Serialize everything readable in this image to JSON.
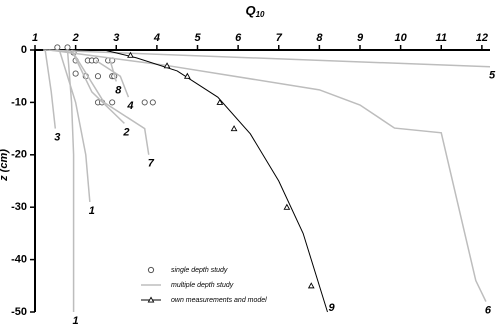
{
  "chart_data": {
    "type": "depth-profile",
    "x_label": "Q",
    "x_label_sub": "10",
    "y_label": "z (cm)",
    "xlim": [
      1,
      12.2
    ],
    "xticks": [
      1,
      2,
      3,
      4,
      5,
      6,
      7,
      8,
      9,
      10,
      11,
      12
    ],
    "ylim": [
      -50,
      0
    ],
    "yticks": [
      0,
      -10,
      -20,
      -30,
      -40,
      -50
    ],
    "series": [
      {
        "name": "single depth study",
        "marker": "circle",
        "color": "#555555",
        "x": [
          1.55,
          1.8,
          1.95,
          2.0,
          2.0,
          2.3,
          2.4,
          2.5,
          2.25,
          2.55,
          2.8,
          2.9,
          2.9,
          2.95,
          2.55,
          2.65,
          2.9,
          3.7,
          3.9
        ],
        "y": [
          0.5,
          0.5,
          -0.5,
          -2,
          -4.5,
          -2,
          -2,
          -2,
          -5,
          -5,
          -2,
          -2,
          -5,
          -5,
          -10,
          -10,
          -10,
          -10,
          -10
        ]
      },
      {
        "name": "multiple depth study",
        "marker": "none",
        "color": "#bdbdbd",
        "lines": [
          {
            "label": "1",
            "x": [
              1.8,
              1.9,
              1.95,
              1.95
            ],
            "y": [
              0,
              -10,
              -20,
              -50
            ]
          },
          {
            "label": "1",
            "x": [
              1.6,
              2.0,
              2.25,
              2.35
            ],
            "y": [
              0,
              -10,
              -20,
              -29
            ]
          },
          {
            "label": "3",
            "x": [
              1.25,
              1.4,
              1.5
            ],
            "y": [
              0,
              -8,
              -15
            ]
          },
          {
            "label": "2",
            "x": [
              1.9,
              2.4,
              3.2
            ],
            "y": [
              0,
              -8,
              -14
            ]
          },
          {
            "label": "4",
            "x": [
              2.5,
              3.1,
              3.3
            ],
            "y": [
              -2,
              -5,
              -9
            ]
          },
          {
            "label": "8",
            "x": [
              2.85,
              3.0
            ],
            "y": [
              -2,
              -6
            ]
          },
          {
            "label": "7",
            "x": [
              1.9,
              2.7,
              3.7,
              3.8
            ],
            "y": [
              0,
              -10,
              -15,
              -20
            ]
          },
          {
            "label": "5",
            "x": [
              1.2,
              12.2
            ],
            "y": [
              0,
              -3.2
            ]
          },
          {
            "label": "6",
            "x": [
              1.35,
              4.2,
              8.0,
              9.0,
              9.85,
              11.0,
              11.85,
              12.1
            ],
            "y": [
              0,
              -2.9,
              -7.6,
              -10.5,
              -14.9,
              -15.8,
              -44,
              -48
            ]
          }
        ]
      },
      {
        "name": "own measurements and model",
        "marker": "triangle",
        "color": "#000000",
        "x": [
          3.35,
          4.25,
          4.75,
          5.55,
          5.9,
          7.2,
          7.8
        ],
        "y": [
          -1,
          -3,
          -5,
          -10,
          -15,
          -30,
          -45
        ],
        "model_label": "9",
        "model_x": [
          2.7,
          3.5,
          4.5,
          5.5,
          6.3,
          7.0,
          7.6,
          8.2
        ],
        "model_y": [
          0,
          -1.5,
          -4,
          -9,
          -16,
          -25,
          -35,
          -50
        ]
      }
    ]
  }
}
